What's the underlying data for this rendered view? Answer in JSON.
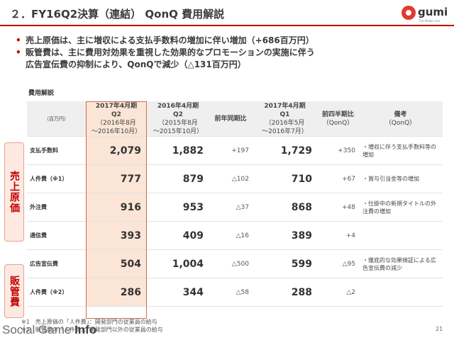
{
  "slide": {
    "title": "２．FY16Q2決算（連結） QonQ 費用解説",
    "page_number": "21"
  },
  "logo": {
    "text": "gumi",
    "sub": "The Mobile Ace",
    "color": "#e23a2e"
  },
  "bullets": [
    "売上原価は、主に増収による支払手数料の増加に伴い増加（+686百万円）",
    "販管費は、主に費用対効果を重視した効果的なプロモーションの実施に伴う",
    "広告宣伝費の抑制により、QonQで減少（△131百万円）"
  ],
  "section_label": "費用解説",
  "table": {
    "headers": {
      "unit": "（百万円）",
      "col1": [
        "2017年4月期",
        "Q2",
        "（2016年8月",
        "～2016年10月）"
      ],
      "col2": [
        "2016年4月期",
        "Q2",
        "（2015年8月",
        "～2015年10月）"
      ],
      "col3": "前年同期比",
      "col4": [
        "2017年4月期",
        "Q1",
        "（2016年5月",
        "～2016年7月）"
      ],
      "col5": [
        "前四半期比",
        "（QonQ）"
      ],
      "col6": [
        "備考",
        "（QonQ）"
      ]
    },
    "rows": [
      {
        "label": "支払手数料",
        "q2_2017": "2,079",
        "q2_2016": "1,882",
        "yoy": "+197",
        "q1_2017": "1,729",
        "qoq": "+350",
        "note": "・増収に伴う支払手数料等の増加"
      },
      {
        "label": "人件費（※1）",
        "q2_2017": "777",
        "q2_2016": "879",
        "yoy": "△102",
        "q1_2017": "710",
        "qoq": "+67",
        "note": "・賞与引当金等の増加"
      },
      {
        "label": "外注費",
        "q2_2017": "916",
        "q2_2016": "953",
        "yoy": "△37",
        "q1_2017": "868",
        "qoq": "+48",
        "note": "・仕掛中の新規タイトルの外注費の増加"
      },
      {
        "label": "通信費",
        "q2_2017": "393",
        "q2_2016": "409",
        "yoy": "△16",
        "q1_2017": "389",
        "qoq": "+4",
        "note": ""
      },
      {
        "label": "広告宣伝費",
        "q2_2017": "504",
        "q2_2016": "1,004",
        "yoy": "△500",
        "q1_2017": "599",
        "qoq": "△95",
        "note": "・徹底的な効果検証による広告宣伝費の減少"
      },
      {
        "label": "人件費（※2）",
        "q2_2017": "286",
        "q2_2016": "344",
        "yoy": "△58",
        "q1_2017": "288",
        "qoq": "△2",
        "note": ""
      }
    ]
  },
  "side_labels": {
    "cogs": "売上原価",
    "sga": "販管費"
  },
  "footnotes": [
    "※1　売上原価の「人件費」：開発部門の従業員の給与",
    "※2　販管費の「人件費」：開発部門以外の従業員の給与"
  ],
  "watermark": {
    "text": "Social Game ",
    "info": "Info"
  },
  "colors": {
    "accent": "#c00000",
    "highlight_column": "#fbe5d6",
    "side_label_bg": "#fde9e1"
  }
}
